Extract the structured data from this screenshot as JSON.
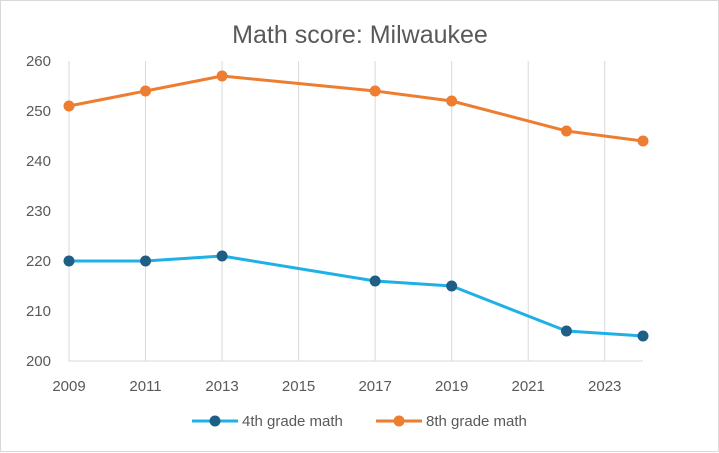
{
  "chart_data": {
    "type": "line",
    "title": "Math score: Milwaukee",
    "xlabel": "",
    "ylabel": "",
    "xlim": [
      2009,
      2024
    ],
    "ylim": [
      200,
      260
    ],
    "x_ticks": [
      "2009",
      "2011",
      "2013",
      "2015",
      "2017",
      "2019",
      "2021",
      "2023"
    ],
    "y_ticks": [
      "200",
      "210",
      "220",
      "230",
      "240",
      "250",
      "260"
    ],
    "grid": "vertical",
    "legend_position": "bottom",
    "series": [
      {
        "name": "4th grade math",
        "line_color": "#1fb0e8",
        "marker_color": "#1f5f85",
        "points": [
          {
            "x": 2009,
            "y": 220
          },
          {
            "x": 2011,
            "y": 220
          },
          {
            "x": 2013,
            "y": 221
          },
          {
            "x": 2017,
            "y": 216
          },
          {
            "x": 2019,
            "y": 215
          },
          {
            "x": 2022,
            "y": 206
          },
          {
            "x": 2024,
            "y": 205
          }
        ]
      },
      {
        "name": "8th grade math",
        "line_color": "#ed7d31",
        "marker_color": "#ed7d31",
        "points": [
          {
            "x": 2009,
            "y": 251
          },
          {
            "x": 2011,
            "y": 254
          },
          {
            "x": 2013,
            "y": 257
          },
          {
            "x": 2017,
            "y": 254
          },
          {
            "x": 2019,
            "y": 252
          },
          {
            "x": 2022,
            "y": 246
          },
          {
            "x": 2024,
            "y": 244
          }
        ]
      }
    ]
  }
}
